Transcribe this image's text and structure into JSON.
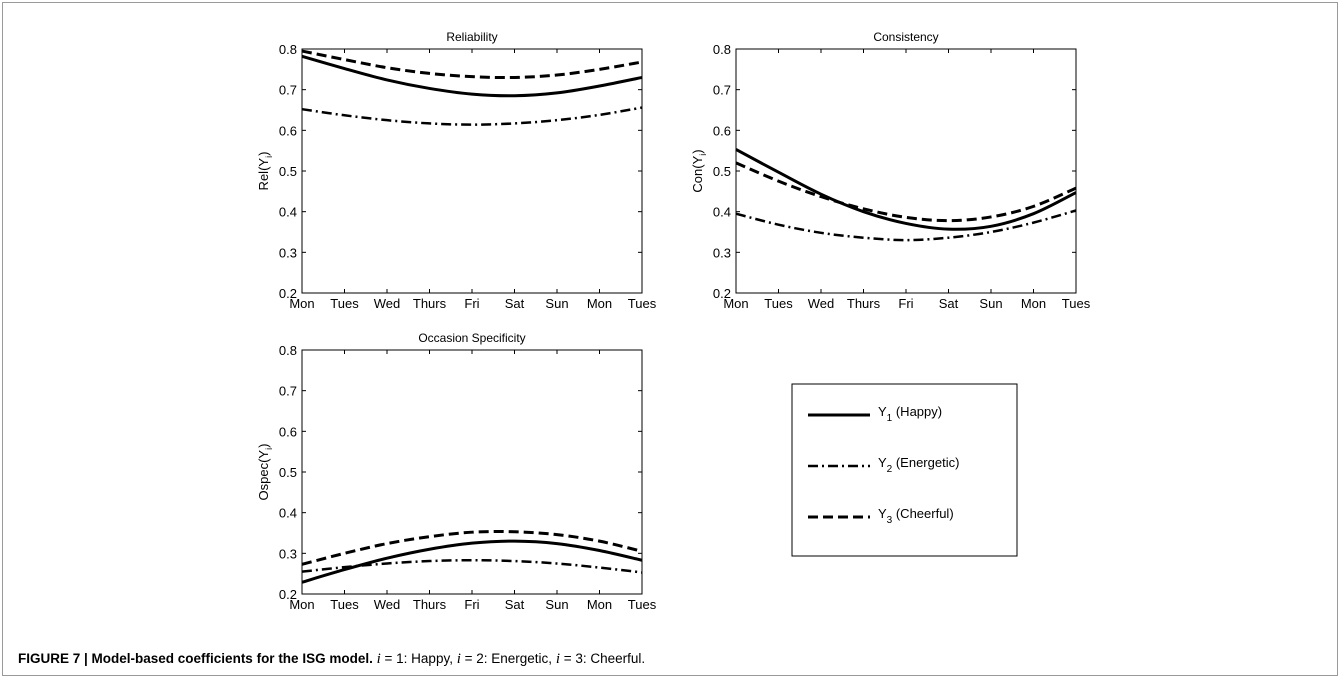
{
  "chart_data": [
    {
      "id": "reliability",
      "type": "line",
      "title": "Reliability",
      "ylabel_base": "Rel(Y",
      "ylabel_sub": "i",
      "ylabel_close": ")",
      "ylim": [
        0.2,
        0.8
      ],
      "yticks": [
        "0.2",
        "0.3",
        "0.4",
        "0.5",
        "0.6",
        "0.7",
        "0.8"
      ],
      "categories": [
        "Mon",
        "Tues",
        "Wed",
        "Thurs",
        "Fri",
        "Sat",
        "Sun",
        "Mon",
        "Tues"
      ],
      "series": [
        {
          "key": "y1",
          "values": [
            0.782,
            0.752,
            0.724,
            0.703,
            0.689,
            0.685,
            0.692,
            0.709,
            0.73
          ]
        },
        {
          "key": "y2",
          "values": [
            0.652,
            0.637,
            0.625,
            0.617,
            0.614,
            0.617,
            0.625,
            0.638,
            0.656
          ]
        },
        {
          "key": "y3",
          "values": [
            0.795,
            0.774,
            0.754,
            0.74,
            0.732,
            0.73,
            0.736,
            0.75,
            0.768
          ]
        }
      ]
    },
    {
      "id": "consistency",
      "type": "line",
      "title": "Consistency",
      "ylabel_base": "Con(Y",
      "ylabel_sub": "i",
      "ylabel_close": ")",
      "ylim": [
        0.2,
        0.8
      ],
      "yticks": [
        "0.2",
        "0.3",
        "0.4",
        "0.5",
        "0.6",
        "0.7",
        "0.8"
      ],
      "categories": [
        "Mon",
        "Tues",
        "Wed",
        "Thurs",
        "Fri",
        "Sat",
        "Sun",
        "Mon",
        "Tues"
      ],
      "series": [
        {
          "key": "y1",
          "values": [
            0.553,
            0.497,
            0.443,
            0.4,
            0.371,
            0.357,
            0.364,
            0.395,
            0.447
          ]
        },
        {
          "key": "y2",
          "values": [
            0.395,
            0.368,
            0.348,
            0.336,
            0.33,
            0.336,
            0.35,
            0.373,
            0.403
          ]
        },
        {
          "key": "y3",
          "values": [
            0.52,
            0.475,
            0.437,
            0.407,
            0.386,
            0.378,
            0.387,
            0.413,
            0.458
          ]
        }
      ]
    },
    {
      "id": "occasion",
      "type": "line",
      "title": "Occasion Specificity",
      "ylabel_base": "Ospec(Y",
      "ylabel_sub": "i",
      "ylabel_close": ")",
      "ylim": [
        0.2,
        0.8
      ],
      "yticks": [
        "0.2",
        "0.3",
        "0.4",
        "0.5",
        "0.6",
        "0.7",
        "0.8"
      ],
      "categories": [
        "Mon",
        "Tues",
        "Wed",
        "Thurs",
        "Fri",
        "Sat",
        "Sun",
        "Mon",
        "Tues"
      ],
      "series": [
        {
          "key": "y1",
          "values": [
            0.229,
            0.26,
            0.288,
            0.31,
            0.325,
            0.33,
            0.324,
            0.307,
            0.283
          ]
        },
        {
          "key": "y2",
          "values": [
            0.255,
            0.266,
            0.275,
            0.281,
            0.283,
            0.281,
            0.275,
            0.265,
            0.253
          ]
        },
        {
          "key": "y3",
          "values": [
            0.273,
            0.3,
            0.324,
            0.341,
            0.352,
            0.353,
            0.346,
            0.33,
            0.305
          ]
        }
      ]
    }
  ],
  "legend": [
    {
      "key": "y1",
      "sym": "Y",
      "sub": "1",
      "label": "(Happy)",
      "dash": "solid"
    },
    {
      "key": "y2",
      "sym": "Y",
      "sub": "2",
      "label": "(Energetic)",
      "dash": "dashdot"
    },
    {
      "key": "y3",
      "sym": "Y",
      "sub": "3",
      "label": "(Cheerful)",
      "dash": "dashed"
    }
  ],
  "caption": {
    "bold": "FIGURE 7 | Model-based coefficients for the ISG model.",
    "parts": [
      {
        "var": "i",
        "text": " = 1: Happy, "
      },
      {
        "var": "i",
        "text": " = 2: Energetic, "
      },
      {
        "var": "i",
        "text": " = 3: Cheerful."
      }
    ]
  }
}
